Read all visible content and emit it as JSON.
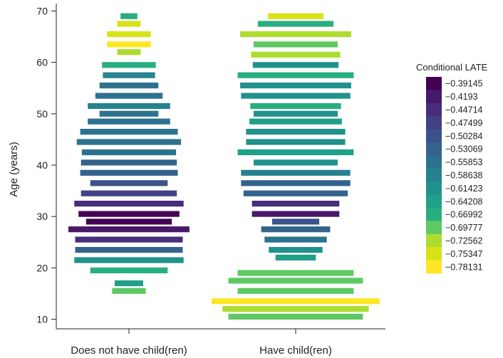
{
  "chart_data": {
    "type": "bar",
    "orientation": "horizontal-symmetric",
    "ylabel": "Age (years)",
    "yticks": [
      10,
      20,
      30,
      40,
      50,
      60,
      70
    ],
    "ylim": [
      9,
      72
    ],
    "categories": [
      "Does not have child(ren)",
      "Have child(ren)"
    ],
    "legend": {
      "title": "Conditional LATE",
      "placement": "right",
      "entries": [
        {
          "label": "−0.39145",
          "color": "#440154"
        },
        {
          "label": "−0.4193",
          "color": "#48186a"
        },
        {
          "label": "−0.44714",
          "color": "#472d7b"
        },
        {
          "label": "−0.47499",
          "color": "#424086"
        },
        {
          "label": "−0.50284",
          "color": "#3b528b"
        },
        {
          "label": "−0.53069",
          "color": "#33638d"
        },
        {
          "label": "−0.55853",
          "color": "#2c728e"
        },
        {
          "label": "−0.58638",
          "color": "#26828e"
        },
        {
          "label": "−0.61423",
          "color": "#21918c"
        },
        {
          "label": "−0.64208",
          "color": "#1fa088"
        },
        {
          "label": "−0.66992",
          "color": "#28ae80"
        },
        {
          "label": "−0.69777",
          "color": "#5ec962"
        },
        {
          "label": "−0.72562",
          "color": "#addc30"
        },
        {
          "label": "−0.75347",
          "color": "#d8e219"
        },
        {
          "label": "−0.78131",
          "color": "#fde725"
        }
      ]
    },
    "series": [
      {
        "category": "Does not have child(ren)",
        "bars": [
          {
            "age": 69,
            "width": 0.1,
            "color_index": 10
          },
          {
            "age": 67.5,
            "width": 0.14,
            "color_index": 13
          },
          {
            "age": 65.5,
            "width": 0.26,
            "color_index": 13
          },
          {
            "age": 63.5,
            "width": 0.26,
            "color_index": 14
          },
          {
            "age": 62,
            "width": 0.14,
            "color_index": 12
          },
          {
            "age": 59.5,
            "width": 0.32,
            "color_index": 10
          },
          {
            "age": 57.5,
            "width": 0.31,
            "color_index": 7
          },
          {
            "age": 55.5,
            "width": 0.35,
            "color_index": 6
          },
          {
            "age": 53.5,
            "width": 0.4,
            "color_index": 6
          },
          {
            "age": 51.5,
            "width": 0.49,
            "color_index": 7
          },
          {
            "age": 50,
            "width": 0.35,
            "color_index": 6
          },
          {
            "age": 48.5,
            "width": 0.49,
            "color_index": 6
          },
          {
            "age": 46.5,
            "width": 0.58,
            "color_index": 6
          },
          {
            "age": 44.5,
            "width": 0.62,
            "color_index": 6
          },
          {
            "age": 42.5,
            "width": 0.56,
            "color_index": 6
          },
          {
            "age": 40.5,
            "width": 0.57,
            "color_index": 5
          },
          {
            "age": 38.5,
            "width": 0.58,
            "color_index": 5
          },
          {
            "age": 36.5,
            "width": 0.46,
            "color_index": 4
          },
          {
            "age": 34.5,
            "width": 0.57,
            "color_index": 3
          },
          {
            "age": 32.5,
            "width": 0.65,
            "color_index": 2
          },
          {
            "age": 30.5,
            "width": 0.6,
            "color_index": 0
          },
          {
            "age": 29,
            "width": 0.51,
            "color_index": 0
          },
          {
            "age": 27.5,
            "width": 0.72,
            "color_index": 1
          },
          {
            "age": 25.5,
            "width": 0.64,
            "color_index": 2
          },
          {
            "age": 23.5,
            "width": 0.64,
            "color_index": 5
          },
          {
            "age": 21.5,
            "width": 0.65,
            "color_index": 8
          },
          {
            "age": 19.5,
            "width": 0.46,
            "color_index": 10
          },
          {
            "age": 17,
            "width": 0.17,
            "color_index": 9
          },
          {
            "age": 15.5,
            "width": 0.2,
            "color_index": 11
          }
        ]
      },
      {
        "category": "Have child(ren)",
        "bars": [
          {
            "age": 69,
            "width": 0.33,
            "color_index": 13
          },
          {
            "age": 67.5,
            "width": 0.45,
            "color_index": 10
          },
          {
            "age": 65.5,
            "width": 0.66,
            "color_index": 12
          },
          {
            "age": 63.5,
            "width": 0.5,
            "color_index": 11
          },
          {
            "age": 61.5,
            "width": 0.53,
            "color_index": 12
          },
          {
            "age": 59.5,
            "width": 0.51,
            "color_index": 8
          },
          {
            "age": 57.5,
            "width": 0.69,
            "color_index": 10
          },
          {
            "age": 55.5,
            "width": 0.66,
            "color_index": 8
          },
          {
            "age": 53.5,
            "width": 0.65,
            "color_index": 8
          },
          {
            "age": 51.5,
            "width": 0.54,
            "color_index": 10
          },
          {
            "age": 50,
            "width": 0.5,
            "color_index": 8
          },
          {
            "age": 48.5,
            "width": 0.55,
            "color_index": 9
          },
          {
            "age": 46.5,
            "width": 0.59,
            "color_index": 8
          },
          {
            "age": 44.5,
            "width": 0.59,
            "color_index": 8
          },
          {
            "age": 42.5,
            "width": 0.69,
            "color_index": 9
          },
          {
            "age": 40.5,
            "width": 0.5,
            "color_index": 8
          },
          {
            "age": 38.5,
            "width": 0.65,
            "color_index": 7
          },
          {
            "age": 36.5,
            "width": 0.65,
            "color_index": 5
          },
          {
            "age": 34.5,
            "width": 0.62,
            "color_index": 5
          },
          {
            "age": 32.5,
            "width": 0.52,
            "color_index": 2
          },
          {
            "age": 30.5,
            "width": 0.52,
            "color_index": 1
          },
          {
            "age": 29,
            "width": 0.28,
            "color_index": 4
          },
          {
            "age": 27.5,
            "width": 0.41,
            "color_index": 5
          },
          {
            "age": 25.5,
            "width": 0.37,
            "color_index": 6
          },
          {
            "age": 23.5,
            "width": 0.32,
            "color_index": 8
          },
          {
            "age": 22,
            "width": 0.24,
            "color_index": 9
          },
          {
            "age": 19,
            "width": 0.69,
            "color_index": 11
          },
          {
            "age": 17.5,
            "width": 0.8,
            "color_index": 11
          },
          {
            "age": 15.5,
            "width": 0.69,
            "color_index": 11
          },
          {
            "age": 13.5,
            "width": 1.0,
            "color_index": 14
          },
          {
            "age": 12,
            "width": 0.87,
            "color_index": 12
          },
          {
            "age": 10.5,
            "width": 0.8,
            "color_index": 11
          }
        ]
      }
    ]
  }
}
